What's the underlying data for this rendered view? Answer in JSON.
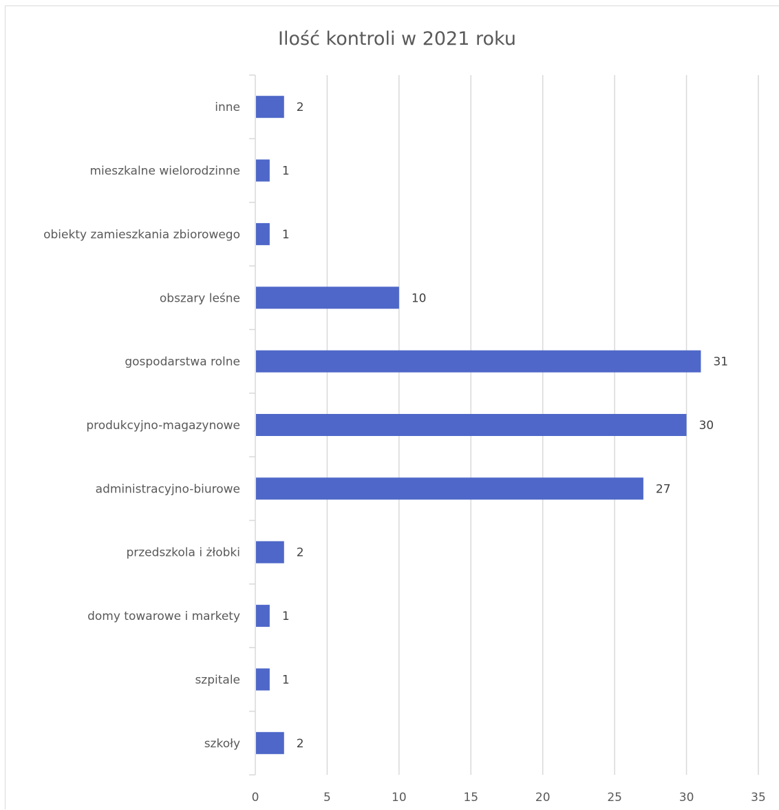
{
  "chart_data": {
    "type": "bar",
    "orientation": "horizontal",
    "title": "Ilość kontroli w 2021 roku",
    "xlabel": "",
    "ylabel": "",
    "categories": [
      "inne",
      "mieszkalne wielorodzinne",
      "obiekty zamieszkania zbiorowego",
      "obszary leśne",
      "gospodarstwa rolne",
      "produkcyjno-magazynowe",
      "administracyjno-biurowe",
      "przedszkola i żłobki",
      "domy towarowe i markety",
      "szpitale",
      "szkoły"
    ],
    "values": [
      2,
      1,
      1,
      10,
      31,
      30,
      27,
      2,
      1,
      1,
      2
    ],
    "xlim": [
      0,
      35
    ],
    "xticks": [
      "0",
      "5",
      "10",
      "15",
      "20",
      "25",
      "30",
      "35"
    ],
    "grid": true,
    "legend": "none",
    "bar_color": "#4e67c8",
    "data_labels": true
  }
}
